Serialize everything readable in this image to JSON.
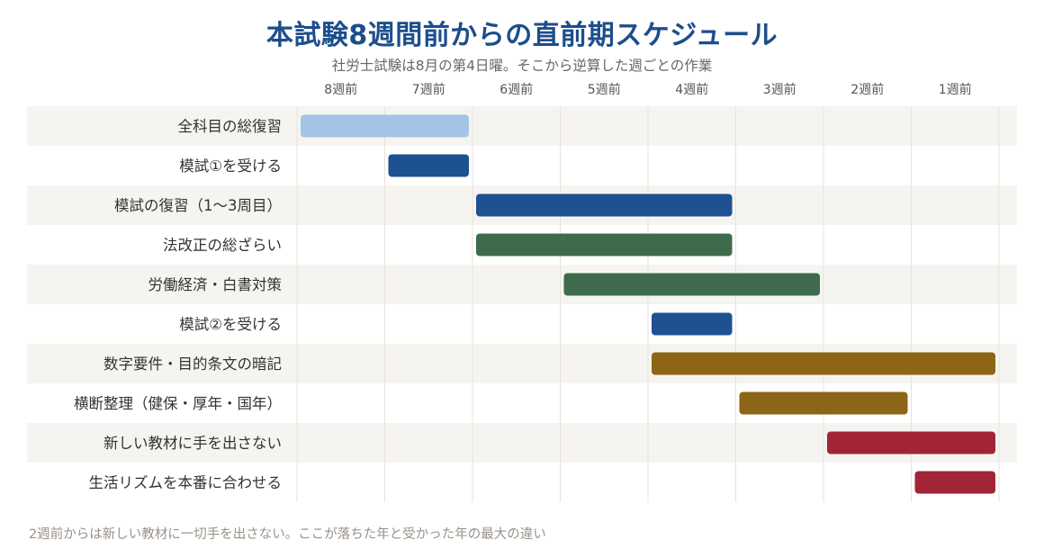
{
  "chart_data": {
    "type": "gantt",
    "title": "本試験8週間前からの直前期スケジュール",
    "subtitle": "社労士試験は8月の第4日曜。そこから逆算した週ごとの作業",
    "footnote": "2週前からは新しい教材に一切手を出さない。ここが落ちた年と受かった年の最大の違い",
    "x_tick_labels": [
      "8週前",
      "7週前",
      "6週前",
      "5週前",
      "4週前",
      "3週前",
      "2週前",
      "1週前"
    ],
    "weeks_before_exam_range": [
      8,
      0
    ],
    "grid": true,
    "tasks": [
      {
        "label": "全科目の総復習",
        "start": 8,
        "end": 6,
        "color": "#a3c4e6"
      },
      {
        "label": "模試①を受ける",
        "start": 7,
        "end": 6,
        "color": "#1d5191"
      },
      {
        "label": "模試の復習（1〜3周目）",
        "start": 6,
        "end": 3,
        "color": "#1d5191"
      },
      {
        "label": "法改正の総ざらい",
        "start": 6,
        "end": 3,
        "color": "#3e6b4c"
      },
      {
        "label": "労働経済・白書対策",
        "start": 5,
        "end": 2,
        "color": "#3e6b4c"
      },
      {
        "label": "模試②を受ける",
        "start": 4,
        "end": 3,
        "color": "#1d5191"
      },
      {
        "label": "数字要件・目的条文の暗記",
        "start": 4,
        "end": 0,
        "color": "#8c6516"
      },
      {
        "label": "横断整理（健保・厚年・国年）",
        "start": 3,
        "end": 1,
        "color": "#8c6516"
      },
      {
        "label": "新しい教材に手を出さない",
        "start": 2,
        "end": 0,
        "color": "#a12536"
      },
      {
        "label": "生活リズムを本番に合わせる",
        "start": 1,
        "end": 0,
        "color": "#a12536"
      }
    ]
  }
}
